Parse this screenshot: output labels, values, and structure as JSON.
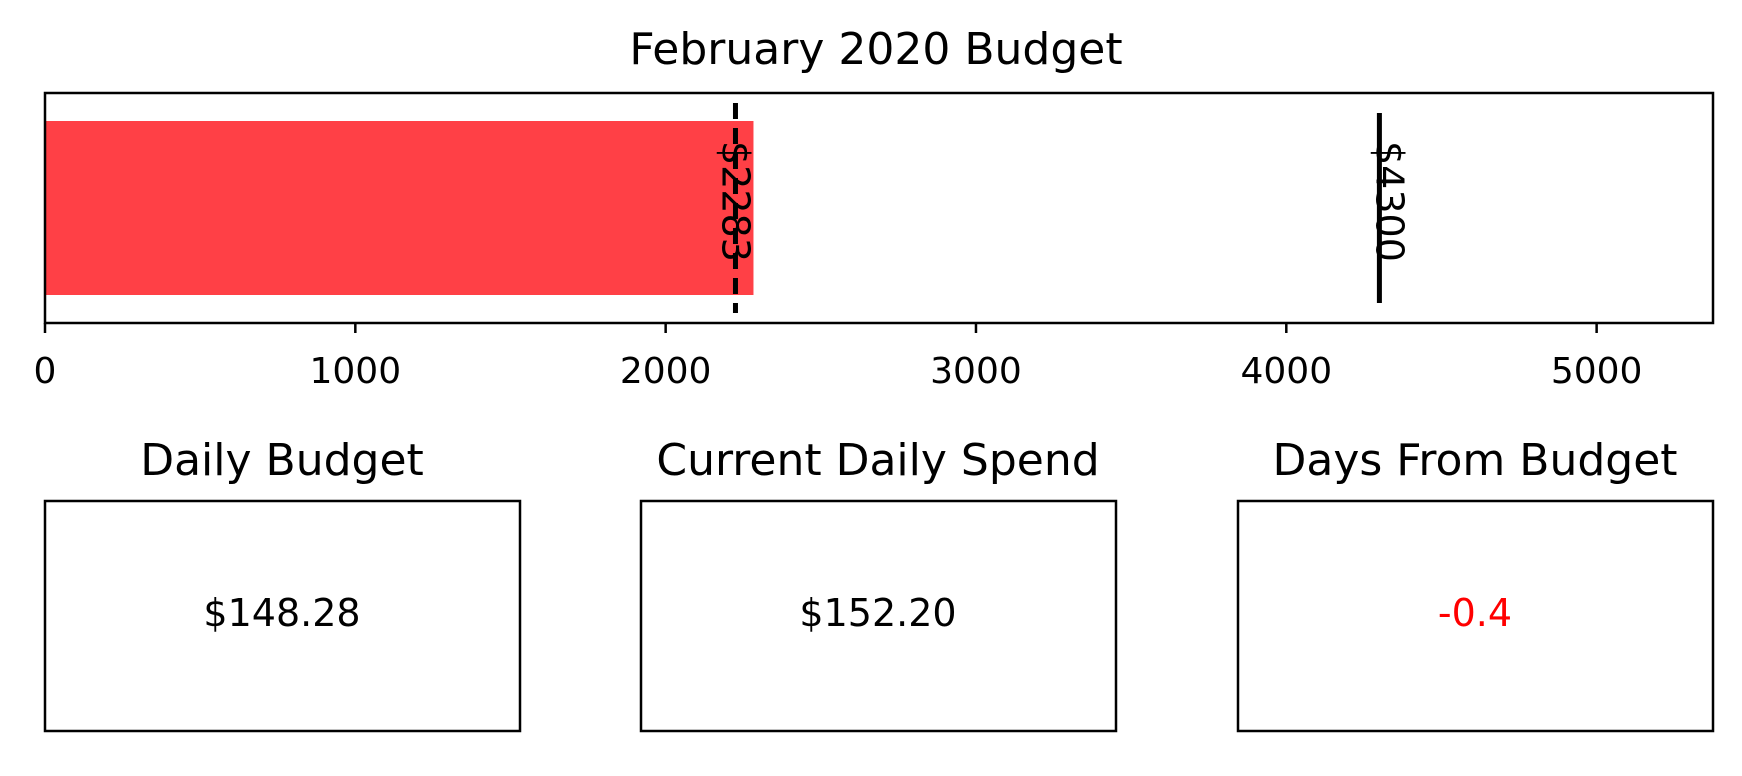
{
  "chart_data": [
    {
      "type": "bar",
      "orientation": "horizontal",
      "title": "February 2020 Budget",
      "xlabel": "",
      "ylabel": "",
      "xlim": [
        0,
        5375
      ],
      "xticks": [
        0,
        1000,
        2000,
        3000,
        4000,
        5000
      ],
      "grid": false,
      "values": [
        2283
      ],
      "bar_color": "#ff4046",
      "reference_lines": [
        {
          "value": 2225,
          "style": "dashed"
        },
        {
          "value": 4300,
          "style": "solid"
        }
      ],
      "annotations": [
        {
          "text": "$2283",
          "value": 2283
        },
        {
          "text": "$4300",
          "value": 4300
        }
      ]
    },
    {
      "type": "table",
      "title": "Daily Budget",
      "value": "$148.28",
      "value_color": "#000000"
    },
    {
      "type": "table",
      "title": "Current Daily Spend",
      "value": "$152.20",
      "value_color": "#000000"
    },
    {
      "type": "table",
      "title": "Days From Budget",
      "value": "-0.4",
      "value_color": "#ff0000"
    }
  ]
}
